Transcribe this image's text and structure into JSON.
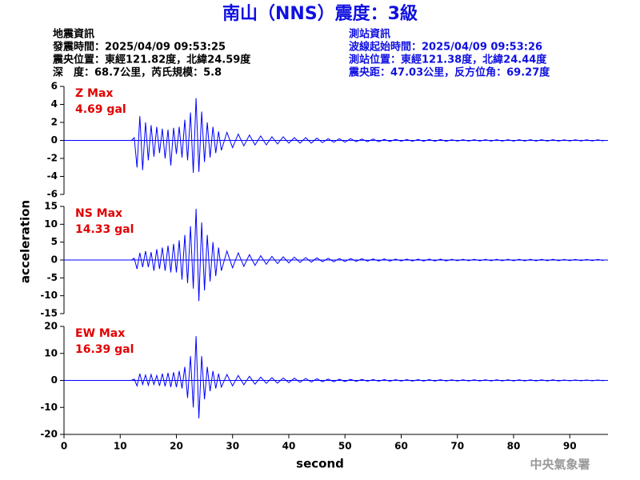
{
  "header": {
    "title": "南山（NNS）震度：3級",
    "left": [
      "地震資訊",
      "發震時間：2025/04/09 09:53:25",
      "震央位置：東經121.82度，北緯24.59度",
      "深　度：68.7公里，芮氏規模：5.8"
    ],
    "right": [
      "測站資訊",
      "波線起始時間：2025/04/09 09:53:26",
      "測站位置：東經121.38度，北緯24.44度",
      "震央距：47.03公里，反方位角：69.27度"
    ],
    "footer": "中央氣象署"
  },
  "chart_data": {
    "type": "line",
    "x_label": "second",
    "y_label": "acceleration",
    "xlim": [
      0,
      96.8
    ],
    "xticks": [
      0,
      10,
      20,
      30,
      40,
      50,
      60,
      70,
      80,
      90
    ],
    "x": [
      0,
      12,
      12.5,
      13,
      13.5,
      14,
      14.5,
      15,
      15.5,
      16,
      16.5,
      17,
      17.5,
      18,
      18.5,
      19,
      19.5,
      20,
      20.5,
      21,
      21.5,
      22,
      22.5,
      23,
      23.5,
      24,
      24.5,
      25,
      25.5,
      26,
      26.5,
      27,
      27.5,
      28,
      29,
      30,
      31,
      32,
      33,
      34,
      35,
      36,
      37,
      38,
      39,
      40,
      41,
      42,
      43,
      44,
      45,
      46,
      47,
      48,
      49,
      50,
      51,
      52,
      53,
      54,
      55,
      56,
      57,
      58,
      59,
      60,
      61,
      62,
      63,
      64,
      65,
      66,
      67,
      68,
      69,
      70,
      71,
      72,
      73,
      74,
      75,
      76,
      77,
      78,
      79,
      80,
      81,
      82,
      83,
      84,
      85,
      86,
      87,
      88,
      89,
      90,
      91,
      92,
      93,
      94,
      95,
      96
    ],
    "series": [
      {
        "name": "Z Max",
        "max_label": "4.69 gal",
        "color": "#0000ff",
        "ylim": [
          -6,
          6
        ],
        "yticks": [
          6,
          4,
          2,
          0,
          -2,
          -4,
          -6
        ],
        "values": [
          0,
          0,
          0.3,
          -3.0,
          2.7,
          -3.3,
          2.0,
          -2.2,
          1.7,
          -1.8,
          1.5,
          -1.4,
          1.3,
          -2.0,
          1.2,
          -2.8,
          1.4,
          -1.5,
          1.5,
          -1.9,
          2.3,
          -2.2,
          3.1,
          -3.6,
          4.69,
          -3.5,
          3.2,
          -2.4,
          2.0,
          -1.9,
          1.5,
          -1.4,
          1.0,
          -1.1,
          0.9,
          -0.8,
          0.7,
          -0.6,
          0.6,
          -0.5,
          0.5,
          -0.5,
          0.4,
          -0.4,
          0.4,
          -0.3,
          0.3,
          -0.3,
          0.3,
          -0.3,
          0.25,
          -0.25,
          0.2,
          -0.2,
          0.2,
          -0.2,
          0.2,
          -0.15,
          0.15,
          -0.15,
          0.15,
          -0.15,
          0.12,
          -0.12,
          0.12,
          -0.1,
          0.1,
          -0.1,
          0.1,
          -0.1,
          0.1,
          -0.1,
          0.1,
          -0.1,
          0.08,
          -0.08,
          0.08,
          -0.08,
          0.08,
          -0.08,
          0.08,
          -0.08,
          0.08,
          -0.08,
          0.08,
          -0.08,
          0.08,
          -0.08,
          0.08,
          -0.08,
          0.08,
          -0.08,
          0.08,
          -0.08,
          0.06,
          -0.06,
          0.06,
          -0.06,
          0.06,
          -0.06,
          0.06,
          -0.06
        ]
      },
      {
        "name": "NS Max",
        "max_label": "14.33 gal",
        "color": "#0000ff",
        "ylim": [
          -15,
          15
        ],
        "yticks": [
          15,
          10,
          5,
          0,
          -5,
          -10,
          -15
        ],
        "values": [
          0,
          0,
          0.5,
          -2.5,
          2.0,
          -2.0,
          2.5,
          -2.0,
          2.2,
          -3.0,
          3.0,
          -2.5,
          3.5,
          -3.0,
          4.0,
          -3.5,
          4.5,
          -3.5,
          5.5,
          -5.5,
          7.0,
          -6.5,
          9.5,
          -8.0,
          14.33,
          -11.5,
          10.5,
          -8.5,
          7.0,
          -6.0,
          5.0,
          -4.5,
          3.5,
          -3.0,
          2.5,
          -2.2,
          2.0,
          -1.8,
          1.5,
          -1.5,
          1.2,
          -1.2,
          1.0,
          -1.0,
          0.9,
          -0.8,
          0.8,
          -0.7,
          0.7,
          -0.6,
          0.6,
          -0.5,
          0.5,
          -0.5,
          0.4,
          -0.4,
          0.4,
          -0.35,
          0.35,
          -0.3,
          0.3,
          -0.3,
          0.3,
          -0.3,
          0.25,
          -0.25,
          0.25,
          -0.25,
          0.25,
          -0.25,
          0.25,
          -0.25,
          0.25,
          -0.25,
          0.2,
          -0.2,
          0.2,
          -0.2,
          0.2,
          -0.2,
          0.2,
          -0.2,
          0.2,
          -0.2,
          0.2,
          -0.2,
          0.2,
          -0.2,
          0.2,
          -0.2,
          0.2,
          -0.2,
          0.2,
          -0.2,
          0.15,
          -0.15,
          0.15,
          -0.15,
          0.15,
          -0.15,
          0.15,
          -0.15
        ]
      },
      {
        "name": "EW Max",
        "max_label": "16.39 gal",
        "color": "#0000ff",
        "ylim": [
          -20,
          20
        ],
        "yticks": [
          20,
          10,
          0,
          -10,
          -20
        ],
        "values": [
          0,
          0,
          0.5,
          -2.0,
          2.5,
          -1.5,
          2.0,
          -1.8,
          2.2,
          -1.5,
          1.8,
          -2.0,
          2.5,
          -2.2,
          2.8,
          -2.5,
          3.0,
          -2.5,
          3.5,
          -3.0,
          5.0,
          -6.5,
          9.0,
          -10.0,
          16.39,
          -14.0,
          9.0,
          -7.0,
          5.0,
          -4.0,
          3.5,
          -3.0,
          2.5,
          -2.5,
          2.2,
          -2.0,
          1.8,
          -1.6,
          1.5,
          -1.4,
          1.2,
          -1.1,
          1.0,
          -1.0,
          0.9,
          -0.8,
          0.8,
          -0.7,
          0.7,
          -0.6,
          0.6,
          -0.5,
          0.5,
          -0.5,
          0.4,
          -0.4,
          0.4,
          -0.35,
          0.35,
          -0.3,
          0.3,
          -0.3,
          0.3,
          -0.3,
          0.25,
          -0.25,
          0.25,
          -0.25,
          0.25,
          -0.25,
          0.25,
          -0.25,
          0.25,
          -0.25,
          0.2,
          -0.2,
          0.2,
          -0.2,
          0.2,
          -0.2,
          0.2,
          -0.2,
          0.2,
          -0.2,
          0.2,
          -0.2,
          0.2,
          -0.2,
          0.2,
          -0.2,
          0.2,
          -0.2,
          0.2,
          -0.2,
          0.15,
          -0.15,
          0.15,
          -0.15,
          0.15,
          -0.15,
          0.15,
          -0.15
        ]
      }
    ]
  }
}
